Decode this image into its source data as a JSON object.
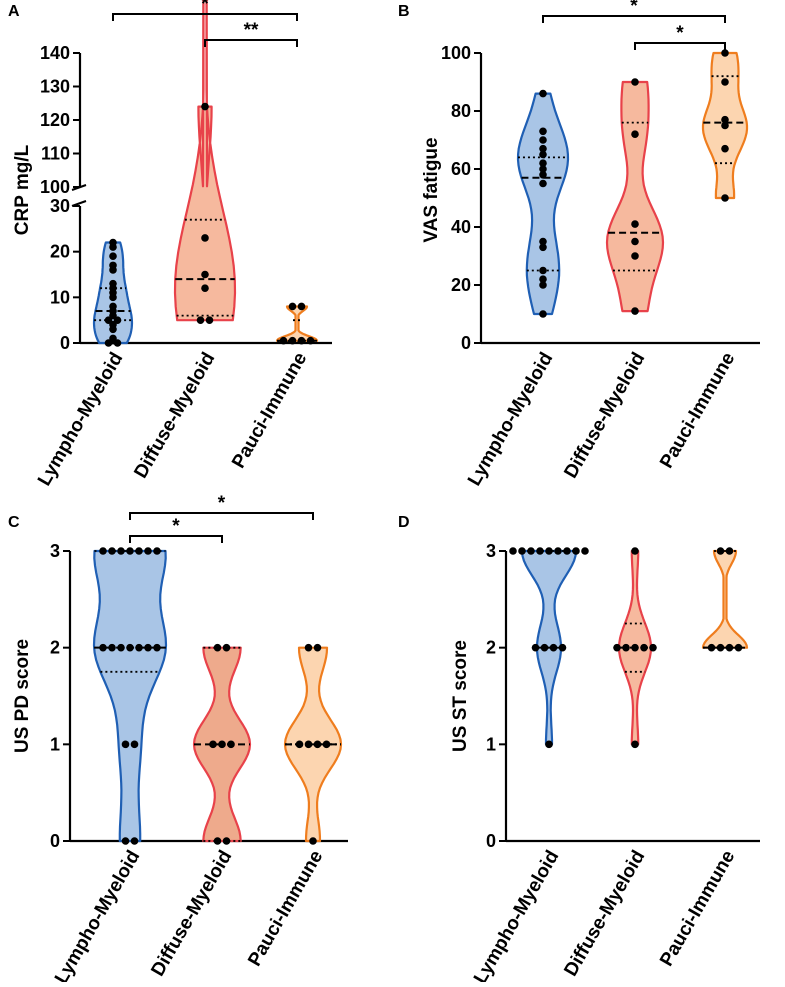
{
  "colors": {
    "lympho_fill": "#a9c5e6",
    "lympho_stroke": "#1f5fb4",
    "diffuse_fill": "#f6b99e",
    "diffuse_stroke": "#e8424a",
    "pauci_fill": "#fcd5b0",
    "pauci_stroke": "#ef7d1e",
    "diffuse_fill_dark": "#eeaa8c"
  },
  "chart_data": [
    {
      "panel": "A",
      "type": "violin",
      "ylabel": "CRP mg/L",
      "categories": [
        "Lympho-Myeloid",
        "Diffuse-Myeloid",
        "Pauci-Immune"
      ],
      "y_axis_broken": true,
      "ylim_lower": [
        0,
        30
      ],
      "ylim_upper": [
        100,
        140
      ],
      "ticks_lower": [
        "0",
        "10",
        "20",
        "30"
      ],
      "ticks_upper": [
        "100",
        "110",
        "120",
        "130",
        "140"
      ],
      "series": [
        {
          "name": "Lympho-Myeloid",
          "median": 7,
          "q1": 5,
          "q3": 12,
          "points": [
            22,
            21,
            19,
            17,
            16,
            13,
            12,
            11,
            10,
            8,
            7,
            6,
            5,
            5,
            4,
            3,
            1,
            0.5,
            0,
            0
          ]
        },
        {
          "name": "Diffuse-Myeloid",
          "median": 14,
          "q1": 6,
          "q3": 27,
          "points": [
            124,
            23,
            15,
            12,
            5,
            5
          ]
        },
        {
          "name": "Pauci-Immune",
          "median": 0.5,
          "q1": 0.3,
          "q3": 5,
          "points": [
            8,
            8,
            0.5,
            0.5,
            0.5,
            0.5
          ]
        }
      ],
      "significance": [
        {
          "from": "Lympho-Myeloid",
          "to": "Pauci-Immune",
          "label": "*"
        },
        {
          "from": "Diffuse-Myeloid",
          "to": "Pauci-Immune",
          "label": "**"
        }
      ]
    },
    {
      "panel": "B",
      "type": "violin",
      "ylabel": "VAS fatigue",
      "categories": [
        "Lympho-Myeloid",
        "Diffuse-Myeloid",
        "Pauci-Immune"
      ],
      "ylim": [
        0,
        100
      ],
      "ticks": [
        "0",
        "20",
        "40",
        "60",
        "80",
        "100"
      ],
      "series": [
        {
          "name": "Lympho-Myeloid",
          "median": 57,
          "q1": 25,
          "q3": 64,
          "points": [
            86,
            73,
            70,
            67,
            65,
            62,
            60,
            58,
            55,
            35,
            33,
            25,
            22,
            20,
            10
          ]
        },
        {
          "name": "Diffuse-Myeloid",
          "median": 38,
          "q1": 25,
          "q3": 76,
          "points": [
            90,
            72,
            41,
            35,
            30,
            11
          ]
        },
        {
          "name": "Pauci-Immune",
          "median": 76,
          "q1": 62,
          "q3": 92,
          "points": [
            100,
            90,
            77,
            75,
            67,
            50
          ]
        }
      ],
      "significance": [
        {
          "from": "Lympho-Myeloid",
          "to": "Pauci-Immune",
          "label": "*"
        },
        {
          "from": "Diffuse-Myeloid",
          "to": "Pauci-Immune",
          "label": "*"
        }
      ]
    },
    {
      "panel": "C",
      "type": "violin",
      "ylabel": "US PD score",
      "categories": [
        "Lympho-Myeloid",
        "Diffuse-Myeloid",
        "Pauci-Immune"
      ],
      "ylim": [
        0,
        3
      ],
      "ticks": [
        "0",
        "1",
        "2",
        "3"
      ],
      "series": [
        {
          "name": "Lympho-Myeloid",
          "median": 2,
          "q1": 1.75,
          "q3": 3,
          "points": [
            3,
            3,
            3,
            3,
            3,
            3,
            3,
            2,
            2,
            2,
            2,
            2,
            2,
            2,
            1,
            1,
            0,
            0
          ]
        },
        {
          "name": "Diffuse-Myeloid",
          "median": 1,
          "q1": 0,
          "q3": 2,
          "points": [
            2,
            2,
            1,
            1,
            1,
            0,
            0
          ]
        },
        {
          "name": "Pauci-Immune",
          "median": 1,
          "q1": 1,
          "q3": 1,
          "points": [
            2,
            2,
            1,
            1,
            1,
            1,
            0
          ]
        }
      ],
      "significance": [
        {
          "from": "Lympho-Myeloid",
          "to": "Diffuse-Myeloid",
          "label": "*"
        },
        {
          "from": "Lympho-Myeloid",
          "to": "Pauci-Immune",
          "label": "*"
        }
      ]
    },
    {
      "panel": "D",
      "type": "violin",
      "ylabel": "US ST score",
      "categories": [
        "Lympho-Myeloid",
        "Diffuse-Myeloid",
        "Pauci-Immune"
      ],
      "ylim": [
        0,
        3
      ],
      "ticks": [
        "0",
        "1",
        "2",
        "3"
      ],
      "series": [
        {
          "name": "Lympho-Myeloid",
          "median": 2,
          "q1": 2,
          "q3": 3,
          "points": [
            3,
            3,
            3,
            3,
            3,
            3,
            3,
            3,
            3,
            2,
            2,
            2,
            2,
            1
          ]
        },
        {
          "name": "Diffuse-Myeloid",
          "median": 2,
          "q1": 1.75,
          "q3": 2.25,
          "points": [
            3,
            2,
            2,
            2,
            2,
            2,
            1
          ]
        },
        {
          "name": "Pauci-Immune",
          "median": 2,
          "q1": 2,
          "q3": 3,
          "points": [
            3,
            3,
            2,
            2,
            2,
            2
          ]
        }
      ],
      "significance": []
    }
  ]
}
